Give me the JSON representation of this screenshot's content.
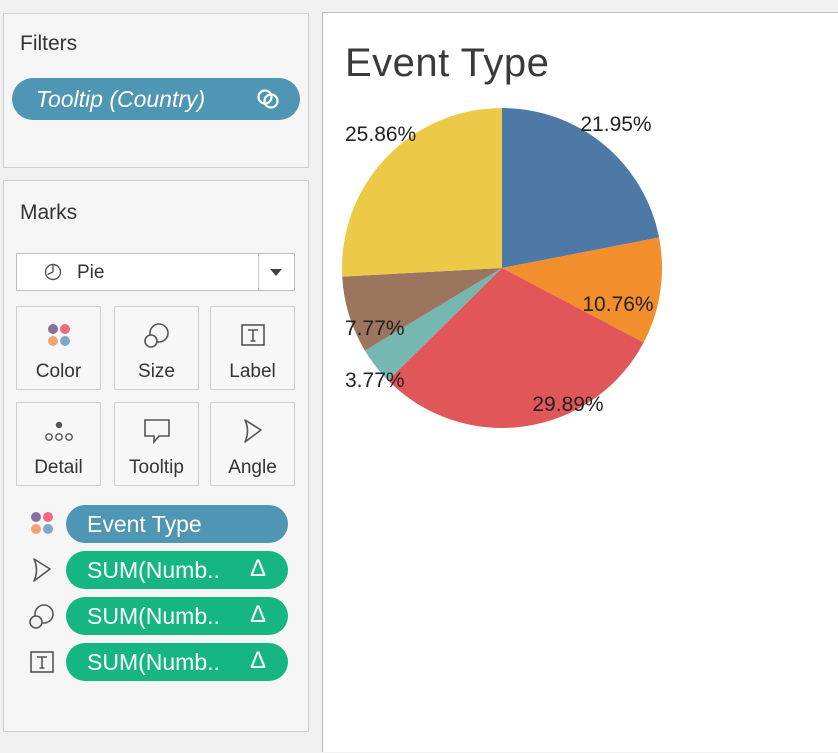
{
  "filters": {
    "title": "Filters",
    "pill_label": "Tooltip (Country)",
    "pill_icon": "link-icon"
  },
  "marks": {
    "title": "Marks",
    "mark_type": "Pie",
    "cards": [
      {
        "label": "Color",
        "icon": "color-dots-icon"
      },
      {
        "label": "Size",
        "icon": "size-icon"
      },
      {
        "label": "Label",
        "icon": "label-icon"
      },
      {
        "label": "Detail",
        "icon": "detail-icon"
      },
      {
        "label": "Tooltip",
        "icon": "tooltip-icon"
      },
      {
        "label": "Angle",
        "icon": "angle-icon"
      }
    ],
    "shelf": [
      {
        "label": "Event Type",
        "icon": "color-dots-icon"
      },
      {
        "label": "SUM(Numb..",
        "icon": "angle-icon",
        "delta": "Δ"
      },
      {
        "label": "SUM(Numb..",
        "icon": "size-icon",
        "delta": "Δ"
      },
      {
        "label": "SUM(Numb..",
        "icon": "label-icon",
        "delta": "Δ"
      }
    ]
  },
  "colors": {
    "blue_pill": "#4e96b3",
    "green_pill": "#16b683"
  },
  "view": {
    "title": "Event Type"
  },
  "chart_data": {
    "type": "pie",
    "title": "Event Type",
    "slices": [
      {
        "value": 21.95,
        "label": "21.95%",
        "color": "#4e79a7"
      },
      {
        "value": 10.76,
        "label": "10.76%",
        "color": "#f28e2b"
      },
      {
        "value": 29.89,
        "label": "29.89%",
        "color": "#e15759"
      },
      {
        "value": 3.77,
        "label": "3.77%",
        "color": "#76b7b2"
      },
      {
        "value": 7.77,
        "label": "7.77%",
        "color": "#9c755f"
      },
      {
        "value": 25.86,
        "label": "25.86%",
        "color": "#edc948"
      }
    ]
  }
}
